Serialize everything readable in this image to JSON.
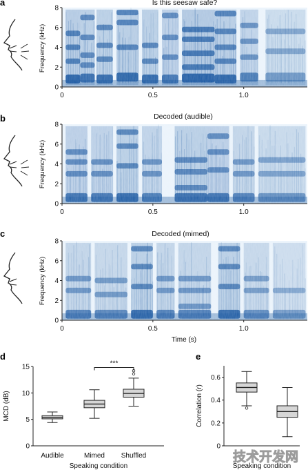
{
  "panels": {
    "a": {
      "letter": "a",
      "title": "Is this seesaw safe?"
    },
    "b": {
      "letter": "b",
      "title": "Decoded (audible)"
    },
    "c": {
      "letter": "c",
      "title": "Decoded (mimed)"
    },
    "d": {
      "letter": "d"
    },
    "e": {
      "letter": "e"
    }
  },
  "spectrogram_axes": {
    "ylabel": "Frequency (kHz)",
    "yticks": [
      "0",
      "2",
      "4",
      "6",
      "8"
    ],
    "xticks": [
      "0",
      "0.5",
      "1.0"
    ],
    "xlabel": "Time (s)"
  },
  "colors": {
    "spectrogram_dark": "#0e4f9c",
    "spectrogram_light": "#eaf3fb",
    "box_fill": "#d6d6d6",
    "line": "#222222"
  },
  "watermark": {
    "text": "技术开发网"
  },
  "chart_data": [
    {
      "type": "heatmap",
      "panel": "a",
      "title": "Is this seesaw safe?",
      "ylabel": "Frequency (kHz)",
      "ylim": [
        0,
        8
      ],
      "xlim": [
        0,
        1.35
      ],
      "xticks": [
        0,
        0.5,
        1.0
      ],
      "segments": [
        {
          "t": [
            0.02,
            0.1
          ],
          "bands": [
            0.8,
            2.6,
            4.0,
            5.4
          ],
          "energy": 0.9
        },
        {
          "t": [
            0.1,
            0.18
          ],
          "bands": [
            0.9,
            2.2,
            3.2,
            5.0,
            7.0
          ],
          "energy": 0.75
        },
        {
          "t": [
            0.19,
            0.28
          ],
          "bands": [
            0.8,
            2.8,
            4.2,
            6.0
          ],
          "energy": 0.8
        },
        {
          "t": [
            0.3,
            0.42
          ],
          "bands": [
            1.0,
            4.0,
            6.5,
            7.5
          ],
          "energy": 0.85
        },
        {
          "t": [
            0.44,
            0.53
          ],
          "bands": [
            0.8,
            2.6,
            4.2
          ],
          "energy": 0.8
        },
        {
          "t": [
            0.55,
            0.64
          ],
          "bands": [
            0.8,
            3.0,
            5.0,
            7.2
          ],
          "energy": 0.7
        },
        {
          "t": [
            0.66,
            0.84
          ],
          "bands": [
            0.9,
            2.0,
            3.4,
            4.8,
            5.8
          ],
          "energy": 1.0
        },
        {
          "t": [
            0.84,
            0.96
          ],
          "bands": [
            0.8,
            2.6,
            4.0,
            5.6,
            7.4
          ],
          "energy": 0.85
        },
        {
          "t": [
            0.98,
            1.08
          ],
          "bands": [
            1.0,
            3.0,
            4.6,
            6.2
          ],
          "energy": 0.6
        },
        {
          "t": [
            1.12,
            1.34
          ],
          "bands": [
            1.0,
            3.6,
            5.6
          ],
          "energy": 0.35
        }
      ]
    },
    {
      "type": "heatmap",
      "panel": "b",
      "title": "Decoded (audible)",
      "ylabel": "Frequency (kHz)",
      "ylim": [
        0,
        8
      ],
      "xlim": [
        0,
        1.35
      ],
      "xticks": [
        0,
        0.5,
        1.0
      ],
      "segments": [
        {
          "t": [
            0.02,
            0.14
          ],
          "bands": [
            0.6,
            3.0,
            4.2,
            5.2
          ],
          "energy": 0.7
        },
        {
          "t": [
            0.16,
            0.28
          ],
          "bands": [
            0.6,
            3.0,
            4.2
          ],
          "energy": 0.65
        },
        {
          "t": [
            0.3,
            0.42
          ],
          "bands": [
            0.6,
            3.8,
            5.8,
            7.2
          ],
          "energy": 0.8
        },
        {
          "t": [
            0.44,
            0.55
          ],
          "bands": [
            0.6,
            3.0,
            4.2
          ],
          "energy": 0.6
        },
        {
          "t": [
            0.62,
            0.8
          ],
          "bands": [
            0.6,
            1.6,
            3.2,
            4.4
          ],
          "energy": 0.75
        },
        {
          "t": [
            0.8,
            0.92
          ],
          "bands": [
            0.6,
            3.4,
            5.2,
            6.8
          ],
          "energy": 0.7
        },
        {
          "t": [
            0.94,
            1.06
          ],
          "bands": [
            0.6,
            3.0,
            4.2
          ],
          "energy": 0.55
        },
        {
          "t": [
            1.08,
            1.34
          ],
          "bands": [
            0.6,
            3.0,
            4.4
          ],
          "energy": 0.4
        }
      ]
    },
    {
      "type": "heatmap",
      "panel": "c",
      "title": "Decoded (mimed)",
      "ylabel": "Frequency (kHz)",
      "xlabel": "Time (s)",
      "ylim": [
        0,
        8
      ],
      "xlim": [
        0,
        1.35
      ],
      "xticks": [
        0,
        0.5,
        1.0
      ],
      "segments": [
        {
          "t": [
            0.02,
            0.16
          ],
          "bands": [
            0.6,
            3.0,
            4.2
          ],
          "energy": 0.55
        },
        {
          "t": [
            0.18,
            0.36
          ],
          "bands": [
            0.6,
            2.6,
            4.0
          ],
          "energy": 0.5
        },
        {
          "t": [
            0.38,
            0.5
          ],
          "bands": [
            0.6,
            3.4,
            5.4,
            7.2
          ],
          "energy": 0.8
        },
        {
          "t": [
            0.52,
            0.62
          ],
          "bands": [
            0.6,
            3.0,
            4.2
          ],
          "energy": 0.55
        },
        {
          "t": [
            0.64,
            0.82
          ],
          "bands": [
            0.6,
            1.4,
            3.0,
            4.2
          ],
          "energy": 0.55
        },
        {
          "t": [
            0.86,
            0.98
          ],
          "bands": [
            0.6,
            3.4,
            5.4,
            7.2
          ],
          "energy": 0.8
        },
        {
          "t": [
            1.0,
            1.14
          ],
          "bands": [
            0.6,
            3.0,
            4.2
          ],
          "energy": 0.45
        },
        {
          "t": [
            1.16,
            1.34
          ],
          "bands": [
            0.6,
            3.0
          ],
          "energy": 0.3
        }
      ]
    },
    {
      "type": "box",
      "panel": "d",
      "ylabel": "MCD (dB)",
      "xlabel": "Speaking condition",
      "ylim": [
        0,
        15
      ],
      "yticks": [
        0,
        5,
        10,
        15
      ],
      "categories": [
        "Audible",
        "Mimed",
        "Shuffled"
      ],
      "boxes": [
        {
          "category": "Audible",
          "whisker_low": 4.4,
          "q1": 5.1,
          "median": 5.4,
          "q3": 5.7,
          "whisker_high": 6.4,
          "outliers": []
        },
        {
          "category": "Mimed",
          "whisker_low": 5.2,
          "q1": 7.2,
          "median": 7.9,
          "q3": 8.6,
          "whisker_high": 10.6,
          "outliers": []
        },
        {
          "category": "Shuffled",
          "whisker_low": 7.5,
          "q1": 9.2,
          "median": 9.9,
          "q3": 10.7,
          "whisker_high": 12.8,
          "outliers": [
            13.6,
            14.2
          ]
        }
      ],
      "annotations": [
        {
          "text": "***",
          "between": [
            "Mimed",
            "Shuffled"
          ],
          "y": 14.8
        }
      ]
    },
    {
      "type": "box",
      "panel": "e",
      "ylabel": "Correlation (r)",
      "xlabel": "Speaking condition",
      "ylim": [
        0,
        0.7
      ],
      "yticks": [
        0,
        0.2,
        0.4,
        0.6
      ],
      "boxes": [
        {
          "whisker_low": 0.35,
          "q1": 0.47,
          "median": 0.51,
          "q3": 0.55,
          "whisker_high": 0.65,
          "outliers": [
            0.33
          ]
        },
        {
          "whisker_low": 0.08,
          "q1": 0.25,
          "median": 0.3,
          "q3": 0.35,
          "whisker_high": 0.51,
          "outliers": []
        }
      ]
    }
  ]
}
